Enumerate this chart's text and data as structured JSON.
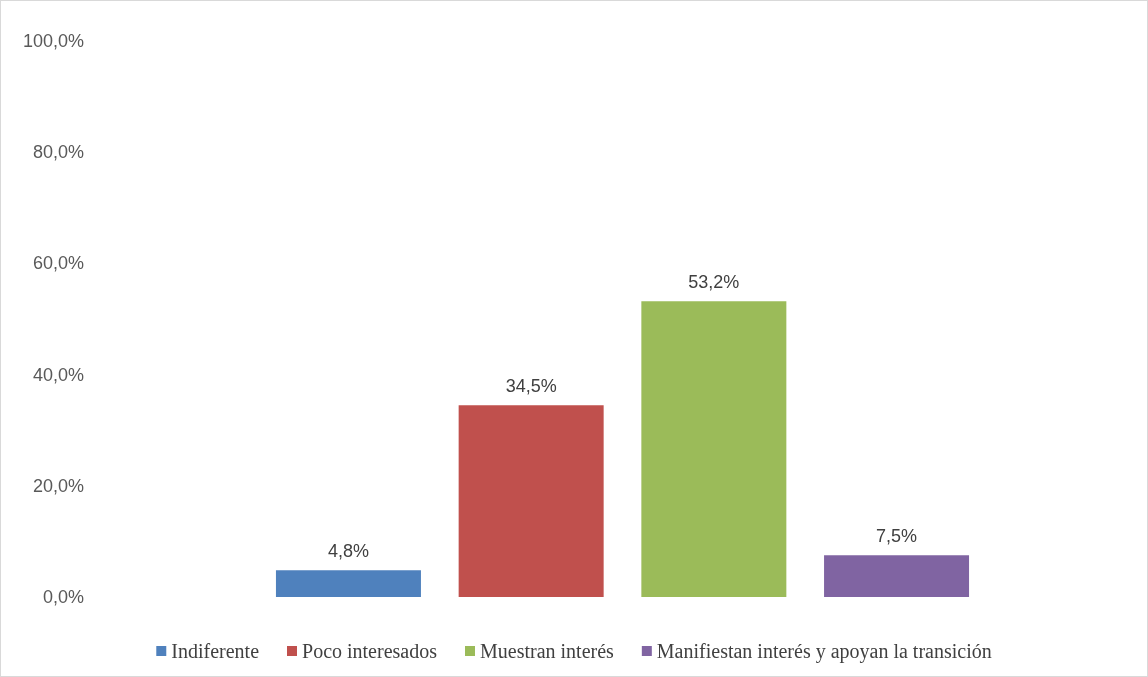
{
  "chart_data": {
    "type": "bar",
    "categories": [
      null
    ],
    "series": [
      {
        "name": "Indiferente",
        "color": "#4f81bd",
        "values": [
          4.8
        ],
        "value_labels": [
          "4,8%"
        ]
      },
      {
        "name": "Poco interesados",
        "color": "#c0504d",
        "values": [
          34.5
        ],
        "value_labels": [
          "34,5%"
        ]
      },
      {
        "name": "Muestran interés",
        "color": "#9bbb59",
        "values": [
          53.2
        ],
        "value_labels": [
          "53,2%"
        ]
      },
      {
        "name": "Manifiestan interés y apoyan la transición",
        "color": "#8064a2",
        "values": [
          7.5
        ],
        "value_labels": [
          "7,5%"
        ]
      }
    ],
    "ylim": [
      0,
      100
    ],
    "yticks": [
      {
        "value": 0,
        "label": "0,0%"
      },
      {
        "value": 20,
        "label": "20,0%"
      },
      {
        "value": 40,
        "label": "40,0%"
      },
      {
        "value": 60,
        "label": "60,0%"
      },
      {
        "value": 80,
        "label": "80,0%"
      },
      {
        "value": 100,
        "label": "100,0%"
      }
    ],
    "grid": false,
    "legend": "bottom"
  }
}
